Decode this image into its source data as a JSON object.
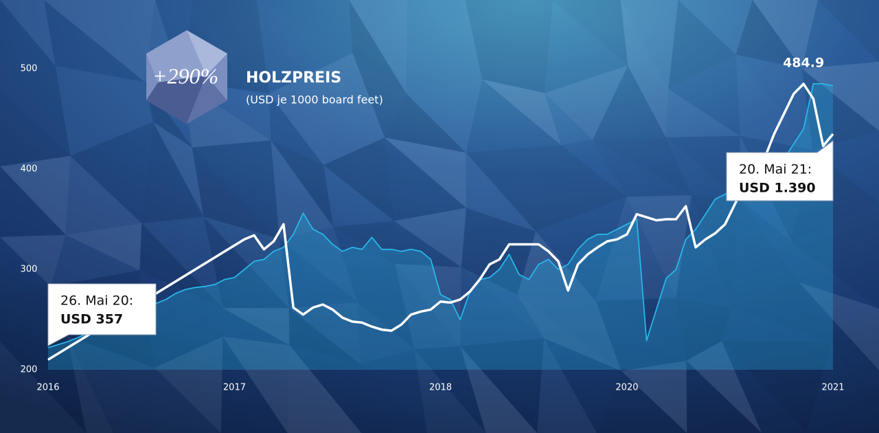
{
  "chart_data": {
    "type": "line",
    "title": "HOLZPREIS",
    "subtitle": "(USD je 1000 board feet)",
    "badge": "+290%",
    "callouts": [
      [
        "26. Mai 20:",
        "USD 357"
      ],
      [
        "20. Mai 21:",
        "USD 1.390"
      ]
    ],
    "categories": [
      "2016",
      null,
      null,
      null,
      null,
      null,
      null,
      null,
      null,
      null,
      null,
      null,
      null,
      null,
      null,
      null,
      null,
      null,
      null,
      "2017",
      null,
      null,
      null,
      null,
      null,
      null,
      null,
      null,
      null,
      null,
      null,
      null,
      null,
      null,
      null,
      null,
      null,
      null,
      null,
      null,
      "2018",
      null,
      null,
      null,
      null,
      null,
      null,
      null,
      null,
      null,
      null,
      null,
      null,
      null,
      null,
      null,
      null,
      null,
      null,
      "2020",
      null,
      null,
      null,
      null,
      null,
      null,
      null,
      null,
      null,
      null,
      null,
      null,
      null,
      null,
      null,
      null,
      null,
      null,
      null,
      null,
      "2021"
    ],
    "series": [
      {
        "color": "#ffffff",
        "values": [
          210,
          216,
          222,
          228,
          234,
          240,
          246,
          252,
          258,
          264,
          270,
          276,
          282,
          288,
          294,
          300,
          306,
          312,
          318,
          324,
          330,
          334,
          320,
          328,
          345,
          262,
          255,
          262,
          265,
          260,
          252,
          248,
          247,
          243,
          240,
          239,
          245,
          255,
          258,
          260,
          268,
          267,
          270,
          278,
          290,
          305,
          310,
          325,
          325,
          325,
          325,
          318,
          308,
          279,
          305,
          315,
          322,
          328,
          330,
          335,
          355,
          352,
          349,
          350,
          350,
          363,
          322,
          330,
          336,
          345,
          365,
          385,
          400,
          410,
          435,
          455,
          475,
          484.9,
          470,
          423,
          435
        ]
      },
      {
        "color": "#29b6e8",
        "values": [
          222,
          225,
          228,
          232,
          236,
          240,
          245,
          250,
          254,
          258,
          262,
          266,
          270,
          276,
          280,
          282,
          283,
          285,
          290,
          292,
          300,
          308,
          310,
          318,
          322,
          335,
          356,
          340,
          335,
          325,
          318,
          322,
          320,
          332,
          320,
          320,
          318,
          320,
          318,
          310,
          275,
          270,
          250,
          278,
          290,
          292,
          300,
          315,
          295,
          290,
          305,
          310,
          300,
          305,
          320,
          330,
          335,
          335,
          340,
          345,
          350,
          229,
          260,
          291,
          300,
          330,
          340,
          355,
          370,
          375,
          380,
          385,
          385,
          395,
          405,
          410,
          425,
          440,
          485,
          485,
          483
        ]
      }
    ],
    "ylim": [
      200,
      500
    ],
    "yticks": [
      200,
      300,
      400,
      500
    ]
  }
}
